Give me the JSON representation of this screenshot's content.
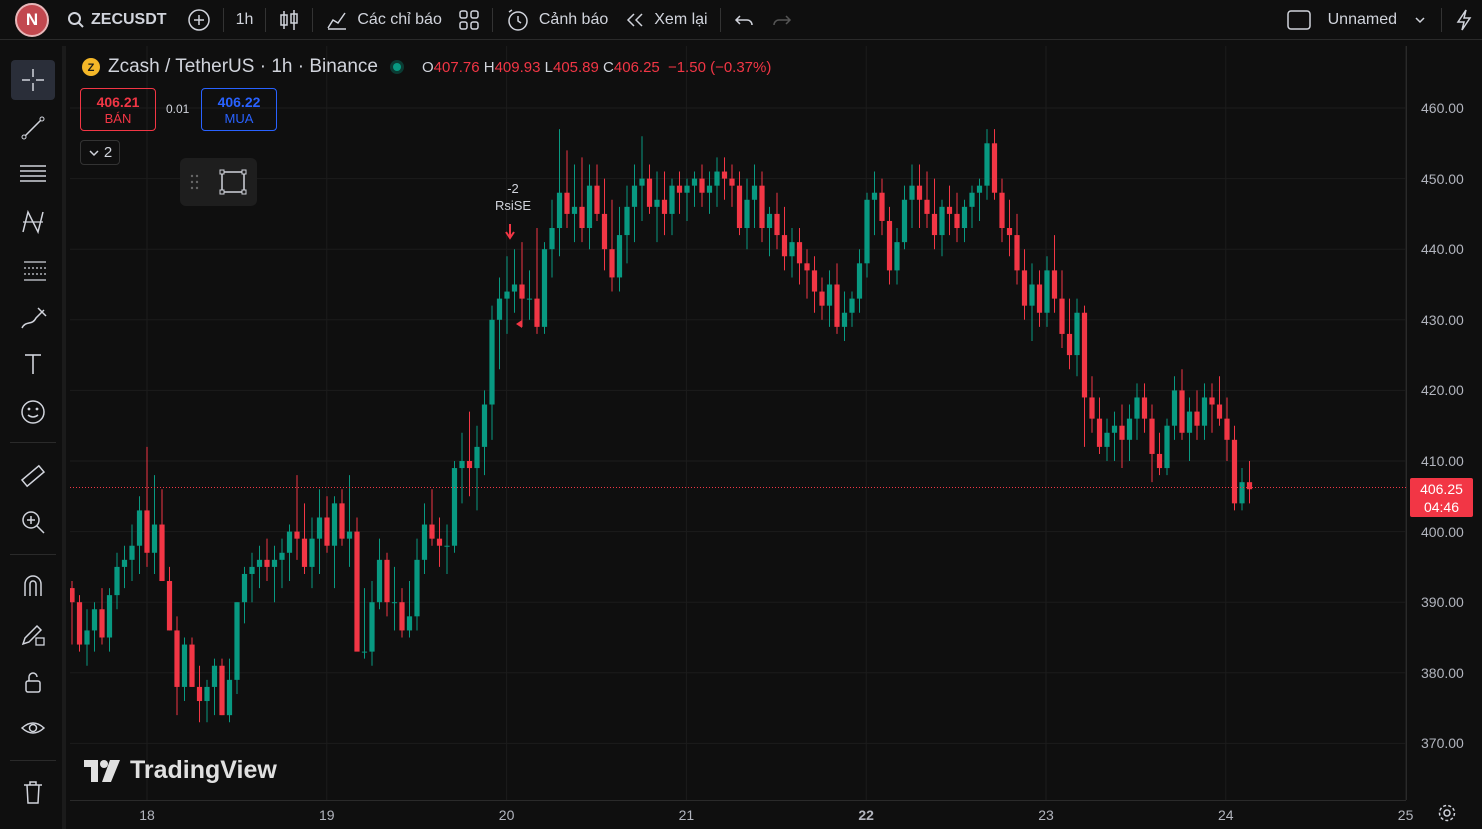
{
  "topbar": {
    "avatar_letter": "N",
    "symbol": "ZECUSDT",
    "interval": "1h",
    "indicators_label": "Các chỉ báo",
    "alerts_label": "Cảnh báo",
    "replay_label": "Xem lại",
    "layout_name": "Unnamed"
  },
  "legend": {
    "title": "Zcash / TetherUS · 1h · Binance",
    "o_label": "O",
    "o": "407.76",
    "h_label": "H",
    "h": "409.93",
    "l_label": "L",
    "l": "405.89",
    "c_label": "C",
    "c": "406.25",
    "change": "−1.50 (−0.37%)"
  },
  "trade": {
    "sell_price": "406.21",
    "sell_label": "BÁN",
    "spread": "0.01",
    "buy_price": "406.22",
    "buy_label": "MUA",
    "collapse_count": "2"
  },
  "signal": {
    "value": "-2",
    "label": "RsiSE"
  },
  "price_axis": {
    "labels": [
      "460.00",
      "450.00",
      "440.00",
      "430.00",
      "420.00",
      "410.00",
      "400.00",
      "390.00",
      "380.00",
      "370.00"
    ],
    "last_price": "406.25",
    "countdown": "04:46"
  },
  "time_axis": {
    "labels": [
      "18",
      "19",
      "20",
      "21",
      "22",
      "23",
      "24",
      "25"
    ]
  },
  "brand": "TradingView",
  "colors": {
    "up": "#089981",
    "down": "#f23645",
    "bg": "#0f0f0f",
    "grid": "#1c1c1c"
  },
  "chart_data": {
    "type": "candlestick",
    "symbol": "ZECUSDT",
    "interval": "1h",
    "ylim": [
      365,
      465
    ],
    "start_label": "17",
    "candles": [
      [
        392,
        393,
        384,
        390
      ],
      [
        390,
        391,
        383,
        384
      ],
      [
        384,
        389,
        381,
        386
      ],
      [
        386,
        390,
        383,
        389
      ],
      [
        389,
        392,
        384,
        385
      ],
      [
        385,
        392,
        383,
        391
      ],
      [
        391,
        397,
        389,
        395
      ],
      [
        395,
        398,
        392,
        396
      ],
      [
        396,
        401,
        393,
        398
      ],
      [
        398,
        405,
        394,
        403
      ],
      [
        403,
        412,
        395,
        397
      ],
      [
        397,
        408,
        394,
        401
      ],
      [
        401,
        406,
        393,
        393
      ],
      [
        393,
        395,
        386,
        386
      ],
      [
        386,
        388,
        374,
        378
      ],
      [
        378,
        385,
        376,
        384
      ],
      [
        384,
        385,
        378,
        378
      ],
      [
        378,
        381,
        373,
        376
      ],
      [
        376,
        379,
        373,
        378
      ],
      [
        378,
        382,
        374,
        381
      ],
      [
        381,
        382,
        374,
        374
      ],
      [
        374,
        382,
        373,
        379
      ],
      [
        379,
        390,
        377,
        390
      ],
      [
        390,
        395,
        387,
        394
      ],
      [
        394,
        397,
        390,
        395
      ],
      [
        395,
        398,
        392,
        396
      ],
      [
        396,
        399,
        393,
        395
      ],
      [
        395,
        398,
        390,
        396
      ],
      [
        396,
        399,
        392,
        397
      ],
      [
        397,
        401,
        393,
        400
      ],
      [
        400,
        408,
        396,
        399
      ],
      [
        399,
        404,
        394,
        395
      ],
      [
        395,
        402,
        392,
        399
      ],
      [
        399,
        406,
        394,
        402
      ],
      [
        402,
        405,
        397,
        398
      ],
      [
        398,
        405,
        392,
        404
      ],
      [
        404,
        406,
        398,
        399
      ],
      [
        399,
        408,
        395,
        400
      ],
      [
        400,
        402,
        384,
        383
      ],
      [
        383,
        392,
        382,
        383
      ],
      [
        383,
        393,
        381,
        390
      ],
      [
        390,
        399,
        389,
        396
      ],
      [
        396,
        397,
        388,
        390
      ],
      [
        390,
        395,
        386,
        390
      ],
      [
        390,
        392,
        385,
        386
      ],
      [
        386,
        393,
        385,
        388
      ],
      [
        388,
        399,
        386,
        396
      ],
      [
        396,
        404,
        394,
        401
      ],
      [
        401,
        406,
        398,
        399
      ],
      [
        399,
        402,
        395,
        398
      ],
      [
        398,
        401,
        394,
        398
      ],
      [
        398,
        410,
        397,
        409
      ],
      [
        409,
        414,
        404,
        410
      ],
      [
        410,
        417,
        405,
        409
      ],
      [
        409,
        415,
        403,
        412
      ],
      [
        412,
        420,
        408,
        418
      ],
      [
        418,
        432,
        413,
        430
      ],
      [
        430,
        436,
        423,
        433
      ],
      [
        433,
        439,
        428,
        434
      ],
      [
        434,
        440,
        431,
        435
      ],
      [
        435,
        441,
        429,
        433
      ],
      [
        433,
        437,
        430,
        433
      ],
      [
        433,
        443,
        428,
        429
      ],
      [
        429,
        441,
        428,
        440
      ],
      [
        440,
        447,
        436,
        443
      ],
      [
        443,
        457,
        439,
        448
      ],
      [
        448,
        454,
        443,
        445
      ],
      [
        445,
        452,
        441,
        446
      ],
      [
        446,
        453,
        441,
        443
      ],
      [
        443,
        452,
        440,
        449
      ],
      [
        449,
        452,
        444,
        445
      ],
      [
        445,
        450,
        437,
        440
      ],
      [
        440,
        447,
        434,
        436
      ],
      [
        436,
        446,
        434,
        442
      ],
      [
        442,
        449,
        438,
        446
      ],
      [
        446,
        452,
        441,
        449
      ],
      [
        449,
        456,
        444,
        450
      ],
      [
        450,
        452,
        445,
        446
      ],
      [
        446,
        451,
        441,
        447
      ],
      [
        447,
        451,
        442,
        445
      ],
      [
        445,
        450,
        442,
        449
      ],
      [
        449,
        451,
        445,
        448
      ],
      [
        448,
        450,
        444,
        449
      ],
      [
        449,
        451,
        446,
        450
      ],
      [
        450,
        452,
        446,
        448
      ],
      [
        448,
        451,
        445,
        449
      ],
      [
        449,
        453,
        446,
        451
      ],
      [
        451,
        453,
        447,
        450
      ],
      [
        450,
        452,
        446,
        449
      ],
      [
        449,
        451,
        442,
        443
      ],
      [
        443,
        450,
        440,
        447
      ],
      [
        447,
        452,
        443,
        449
      ],
      [
        449,
        451,
        441,
        443
      ],
      [
        443,
        446,
        439,
        445
      ],
      [
        445,
        448,
        440,
        442
      ],
      [
        442,
        446,
        437,
        439
      ],
      [
        439,
        443,
        436,
        441
      ],
      [
        441,
        443,
        435,
        438
      ],
      [
        438,
        440,
        433,
        437
      ],
      [
        437,
        439,
        431,
        434
      ],
      [
        434,
        436,
        430,
        432
      ],
      [
        432,
        437,
        429,
        435
      ],
      [
        435,
        438,
        428,
        429
      ],
      [
        429,
        434,
        427,
        431
      ],
      [
        431,
        434,
        429,
        433
      ],
      [
        433,
        440,
        431,
        438
      ],
      [
        438,
        448,
        436,
        447
      ],
      [
        447,
        451,
        442,
        448
      ],
      [
        448,
        450,
        442,
        444
      ],
      [
        444,
        446,
        435,
        437
      ],
      [
        437,
        443,
        435,
        441
      ],
      [
        441,
        449,
        440,
        447
      ],
      [
        447,
        452,
        443,
        449
      ],
      [
        449,
        452,
        443,
        447
      ],
      [
        447,
        451,
        443,
        445
      ],
      [
        445,
        450,
        440,
        442
      ],
      [
        442,
        447,
        439,
        446
      ],
      [
        446,
        449,
        442,
        445
      ],
      [
        445,
        448,
        441,
        443
      ],
      [
        443,
        447,
        441,
        446
      ],
      [
        446,
        449,
        443,
        448
      ],
      [
        448,
        450,
        444,
        449
      ],
      [
        449,
        457,
        447,
        455
      ],
      [
        455,
        457,
        447,
        448
      ],
      [
        448,
        450,
        441,
        443
      ],
      [
        443,
        447,
        439,
        442
      ],
      [
        442,
        445,
        435,
        437
      ],
      [
        437,
        440,
        430,
        432
      ],
      [
        432,
        438,
        427,
        435
      ],
      [
        435,
        437,
        429,
        431
      ],
      [
        431,
        439,
        429,
        437
      ],
      [
        437,
        442,
        431,
        433
      ],
      [
        433,
        437,
        426,
        428
      ],
      [
        428,
        433,
        423,
        425
      ],
      [
        425,
        433,
        422,
        431
      ],
      [
        431,
        432,
        412,
        419
      ],
      [
        419,
        422,
        414,
        416
      ],
      [
        416,
        419,
        411,
        412
      ],
      [
        412,
        416,
        410,
        414
      ],
      [
        414,
        417,
        410,
        415
      ],
      [
        415,
        418,
        409,
        413
      ],
      [
        413,
        418,
        410,
        416
      ],
      [
        416,
        421,
        413,
        419
      ],
      [
        419,
        421,
        414,
        416
      ],
      [
        416,
        418,
        407,
        411
      ],
      [
        411,
        414,
        408,
        409
      ],
      [
        409,
        416,
        408,
        415
      ],
      [
        415,
        422,
        413,
        420
      ],
      [
        420,
        423,
        413,
        414
      ],
      [
        414,
        419,
        410,
        417
      ],
      [
        417,
        420,
        413,
        415
      ],
      [
        415,
        421,
        413,
        419
      ],
      [
        419,
        421,
        414,
        418
      ],
      [
        418,
        422,
        415,
        416
      ],
      [
        416,
        419,
        410,
        413
      ],
      [
        413,
        415,
        403,
        404
      ],
      [
        404,
        409,
        403,
        407
      ],
      [
        407,
        410,
        404,
        406
      ]
    ]
  }
}
